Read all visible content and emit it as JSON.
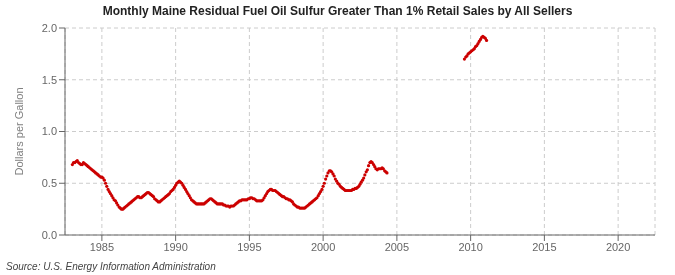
{
  "chart_data": {
    "type": "scatter",
    "title": "Monthly Maine Residual Fuel Oil Sulfur Greater Than 1% Retail Sales by All Sellers",
    "ylabel": "Dollars per Gallon",
    "source": "Source: U.S. Energy Information Administration",
    "color": "#cc0000",
    "grid": true,
    "xlim": [
      1982.5,
      2022.5
    ],
    "ylim": [
      0.0,
      2.0
    ],
    "xticks": [
      1985,
      1990,
      1995,
      2000,
      2005,
      2010,
      2015,
      2020
    ],
    "yticks": [
      {
        "value": 0.0,
        "label": "0.0"
      },
      0.5,
      {
        "value": 1.0,
        "label": "1.0"
      },
      1.5,
      {
        "value": 2.0,
        "label": "2.0"
      }
    ],
    "x": [
      1983.0,
      1983.08,
      1983.17,
      1983.25,
      1983.33,
      1983.42,
      1983.5,
      1983.58,
      1983.67,
      1983.75,
      1983.83,
      1983.92,
      1984.0,
      1984.08,
      1984.17,
      1984.25,
      1984.33,
      1984.42,
      1984.5,
      1984.58,
      1984.67,
      1984.75,
      1984.83,
      1984.92,
      1985.0,
      1985.08,
      1985.17,
      1985.25,
      1985.33,
      1985.42,
      1985.5,
      1985.58,
      1985.67,
      1985.75,
      1985.83,
      1985.92,
      1986.0,
      1986.08,
      1986.17,
      1986.25,
      1986.33,
      1986.42,
      1986.5,
      1986.58,
      1986.67,
      1986.75,
      1986.83,
      1986.92,
      1987.0,
      1987.08,
      1987.17,
      1987.25,
      1987.33,
      1987.42,
      1987.5,
      1987.58,
      1987.67,
      1987.75,
      1987.83,
      1987.92,
      1988.0,
      1988.08,
      1988.17,
      1988.25,
      1988.33,
      1988.42,
      1988.5,
      1988.58,
      1988.67,
      1988.75,
      1988.83,
      1988.92,
      1989.0,
      1989.08,
      1989.17,
      1989.25,
      1989.33,
      1989.42,
      1989.5,
      1989.58,
      1989.67,
      1989.75,
      1989.83,
      1989.92,
      1990.0,
      1990.08,
      1990.17,
      1990.25,
      1990.33,
      1990.42,
      1990.5,
      1990.58,
      1990.67,
      1990.75,
      1990.83,
      1990.92,
      1991.0,
      1991.08,
      1991.17,
      1991.25,
      1991.33,
      1991.42,
      1991.5,
      1991.58,
      1991.67,
      1991.75,
      1991.83,
      1991.92,
      1992.0,
      1992.08,
      1992.17,
      1992.25,
      1992.33,
      1992.42,
      1992.5,
      1992.58,
      1992.67,
      1992.75,
      1992.83,
      1992.92,
      1993.0,
      1993.08,
      1993.17,
      1993.25,
      1993.33,
      1993.42,
      1993.5,
      1993.58,
      1993.67,
      1993.75,
      1993.83,
      1993.92,
      1994.0,
      1994.08,
      1994.17,
      1994.25,
      1994.33,
      1994.42,
      1994.5,
      1994.58,
      1994.67,
      1994.75,
      1994.83,
      1994.92,
      1995.0,
      1995.08,
      1995.17,
      1995.25,
      1995.33,
      1995.42,
      1995.5,
      1995.58,
      1995.67,
      1995.75,
      1995.83,
      1995.92,
      1996.0,
      1996.08,
      1996.17,
      1996.25,
      1996.33,
      1996.42,
      1996.5,
      1996.58,
      1996.67,
      1996.75,
      1996.83,
      1996.92,
      1997.0,
      1997.08,
      1997.17,
      1997.25,
      1997.33,
      1997.42,
      1997.5,
      1997.58,
      1997.67,
      1997.75,
      1997.83,
      1997.92,
      1998.0,
      1998.08,
      1998.17,
      1998.25,
      1998.33,
      1998.42,
      1998.5,
      1998.58,
      1998.67,
      1998.75,
      1998.83,
      1998.92,
      1999.0,
      1999.08,
      1999.17,
      1999.25,
      1999.33,
      1999.42,
      1999.5,
      1999.58,
      1999.67,
      1999.75,
      1999.83,
      1999.92,
      2000.0,
      2000.08,
      2000.17,
      2000.25,
      2000.33,
      2000.42,
      2000.5,
      2000.58,
      2000.67,
      2000.75,
      2000.83,
      2000.92,
      2001.0,
      2001.08,
      2001.17,
      2001.25,
      2001.33,
      2001.42,
      2001.5,
      2001.58,
      2001.67,
      2001.75,
      2001.83,
      2001.92,
      2002.0,
      2002.08,
      2002.17,
      2002.25,
      2002.33,
      2002.42,
      2002.5,
      2002.58,
      2002.67,
      2002.75,
      2002.83,
      2002.92,
      2003.0,
      2003.08,
      2003.17,
      2003.25,
      2003.33,
      2003.42,
      2003.5,
      2003.58,
      2003.67,
      2003.75,
      2003.83,
      2003.92,
      2004.0,
      2004.08,
      2004.17,
      2004.25,
      2004.33,
      2009.58,
      2009.67,
      2009.75,
      2009.83,
      2009.92,
      2010.0,
      2010.08,
      2010.17,
      2010.25,
      2010.33,
      2010.42,
      2010.5,
      2010.58,
      2010.67,
      2010.75,
      2010.83,
      2010.92,
      2011.0,
      2011.08
    ],
    "values": [
      0.68,
      0.7,
      0.7,
      0.71,
      0.72,
      0.7,
      0.69,
      0.68,
      0.68,
      0.7,
      0.69,
      0.68,
      0.67,
      0.66,
      0.65,
      0.64,
      0.63,
      0.62,
      0.61,
      0.6,
      0.59,
      0.58,
      0.57,
      0.56,
      0.56,
      0.55,
      0.53,
      0.5,
      0.47,
      0.44,
      0.42,
      0.4,
      0.38,
      0.36,
      0.34,
      0.33,
      0.31,
      0.29,
      0.27,
      0.26,
      0.25,
      0.25,
      0.26,
      0.27,
      0.28,
      0.29,
      0.3,
      0.31,
      0.32,
      0.33,
      0.34,
      0.35,
      0.36,
      0.37,
      0.37,
      0.36,
      0.36,
      0.37,
      0.38,
      0.39,
      0.4,
      0.41,
      0.41,
      0.4,
      0.39,
      0.38,
      0.37,
      0.35,
      0.34,
      0.33,
      0.32,
      0.32,
      0.33,
      0.34,
      0.35,
      0.36,
      0.37,
      0.38,
      0.39,
      0.4,
      0.42,
      0.43,
      0.44,
      0.46,
      0.48,
      0.5,
      0.51,
      0.52,
      0.51,
      0.5,
      0.48,
      0.46,
      0.44,
      0.42,
      0.4,
      0.38,
      0.36,
      0.34,
      0.33,
      0.32,
      0.31,
      0.3,
      0.3,
      0.3,
      0.3,
      0.3,
      0.3,
      0.3,
      0.31,
      0.32,
      0.33,
      0.34,
      0.35,
      0.35,
      0.34,
      0.33,
      0.32,
      0.31,
      0.3,
      0.3,
      0.3,
      0.3,
      0.3,
      0.29,
      0.29,
      0.28,
      0.28,
      0.28,
      0.27,
      0.28,
      0.28,
      0.28,
      0.29,
      0.3,
      0.31,
      0.32,
      0.33,
      0.33,
      0.34,
      0.34,
      0.34,
      0.34,
      0.34,
      0.35,
      0.35,
      0.36,
      0.36,
      0.35,
      0.35,
      0.34,
      0.33,
      0.33,
      0.33,
      0.33,
      0.33,
      0.34,
      0.36,
      0.38,
      0.4,
      0.42,
      0.43,
      0.44,
      0.44,
      0.43,
      0.43,
      0.43,
      0.42,
      0.41,
      0.4,
      0.39,
      0.38,
      0.37,
      0.37,
      0.36,
      0.35,
      0.35,
      0.34,
      0.34,
      0.33,
      0.32,
      0.3,
      0.29,
      0.28,
      0.27,
      0.27,
      0.26,
      0.26,
      0.26,
      0.26,
      0.26,
      0.27,
      0.28,
      0.29,
      0.3,
      0.31,
      0.32,
      0.33,
      0.34,
      0.35,
      0.36,
      0.38,
      0.4,
      0.42,
      0.44,
      0.47,
      0.5,
      0.54,
      0.57,
      0.6,
      0.62,
      0.62,
      0.61,
      0.59,
      0.57,
      0.54,
      0.52,
      0.5,
      0.49,
      0.47,
      0.46,
      0.45,
      0.44,
      0.43,
      0.43,
      0.43,
      0.43,
      0.43,
      0.43,
      0.44,
      0.44,
      0.45,
      0.45,
      0.46,
      0.47,
      0.49,
      0.51,
      0.53,
      0.55,
      0.58,
      0.61,
      0.63,
      0.67,
      0.7,
      0.71,
      0.7,
      0.68,
      0.66,
      0.64,
      0.63,
      0.64,
      0.64,
      0.64,
      0.65,
      0.64,
      0.62,
      0.61,
      0.6,
      1.7,
      1.72,
      1.73,
      1.75,
      1.76,
      1.77,
      1.78,
      1.79,
      1.8,
      1.82,
      1.83,
      1.85,
      1.87,
      1.89,
      1.91,
      1.92,
      1.91,
      1.9,
      1.88
    ]
  }
}
